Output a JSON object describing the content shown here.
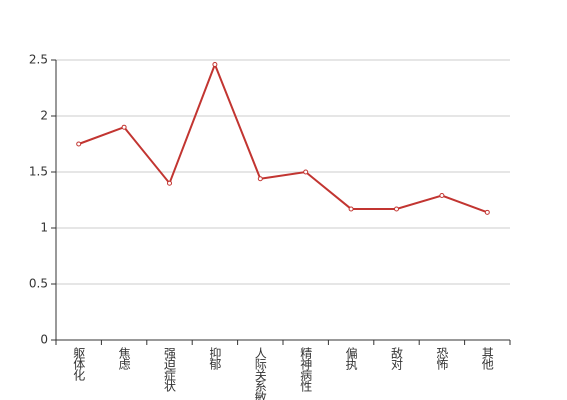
{
  "chart_data": {
    "type": "line",
    "categories": [
      "躯体化",
      "焦虑",
      "强迫症状",
      "抑郁",
      "人际关系敏感",
      "精神病性",
      "偏执",
      "敌对",
      "恐怖",
      "其他"
    ],
    "series": [
      {
        "color": "#c23531",
        "values": [
          1.75,
          1.9,
          1.4,
          2.46,
          1.44,
          1.5,
          1.17,
          1.17,
          1.29,
          1.14
        ]
      }
    ],
    "ylim": [
      0,
      2.5
    ],
    "yticks": [
      0,
      0.5,
      1,
      1.5,
      2,
      2.5
    ],
    "grid": true
  }
}
